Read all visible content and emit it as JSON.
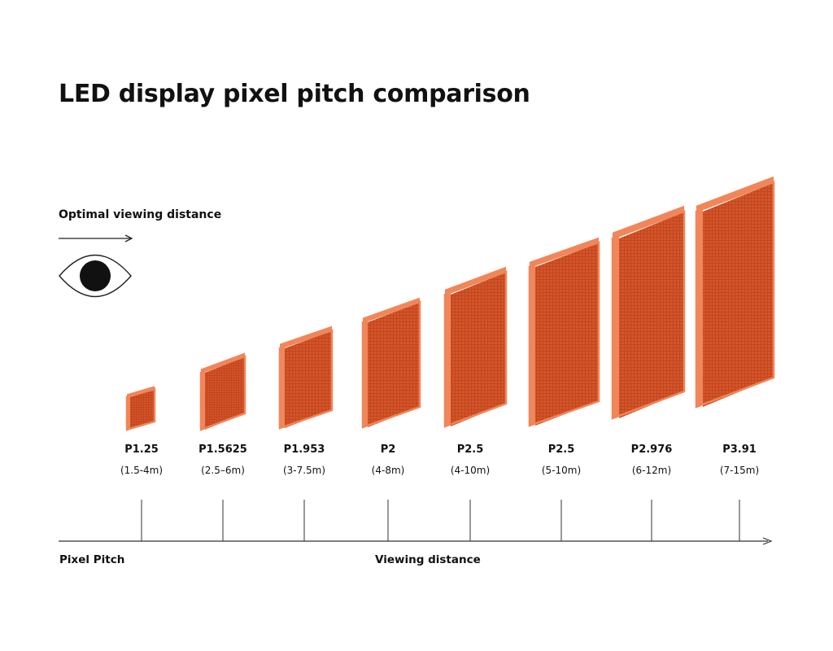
{
  "title": "LED display pixel pitch comparison",
  "viewing_label": "Optimal viewing distance",
  "axis": {
    "pitch_label": "Pixel Pitch",
    "distance_label": "Viewing distance"
  },
  "icons": {
    "eye": "eye-icon",
    "arrow": "arrow-right-icon"
  },
  "colors": {
    "panel_face": "#c2461e",
    "panel_edge": "#f0865a",
    "panel_grid": "#e0693f",
    "line": "#333333"
  },
  "panels": [
    {
      "pitch": "P1.25",
      "range": "(1.5-4m)"
    },
    {
      "pitch": "P1.5625",
      "range": "(2.5–6m)"
    },
    {
      "pitch": "P1.953",
      "range": "(3-7.5m)"
    },
    {
      "pitch": "P2",
      "range": "(4-8m)"
    },
    {
      "pitch": "P2.5",
      "range": "(4-10m)"
    },
    {
      "pitch": "P2.5",
      "range": "(5-10m)"
    },
    {
      "pitch": "P2.976",
      "range": "(6-12m)"
    },
    {
      "pitch": "P3.91",
      "range": "(7-15m)"
    }
  ]
}
